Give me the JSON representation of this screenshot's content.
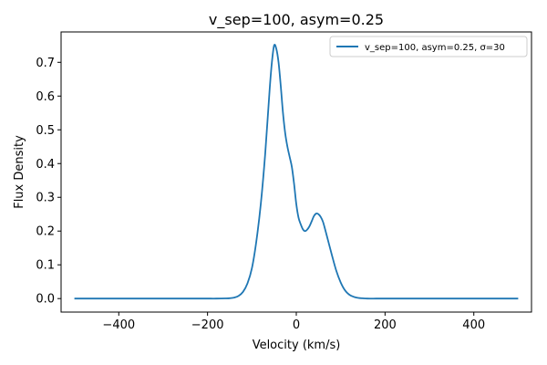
{
  "chart_data": {
    "type": "line",
    "title": "v_sep=100, asym=0.25",
    "xlabel": "Velocity (km/s)",
    "ylabel": "Flux Density",
    "xlim": [
      -530,
      530
    ],
    "ylim": [
      -0.04,
      0.79
    ],
    "xticks": [
      -400,
      -200,
      0,
      200,
      400
    ],
    "xtick_labels": [
      "−400",
      "−200",
      "0",
      "200",
      "400"
    ],
    "yticks": [
      0.0,
      0.1,
      0.2,
      0.3,
      0.4,
      0.5,
      0.6,
      0.7
    ],
    "ytick_labels": [
      "0.0",
      "0.1",
      "0.2",
      "0.3",
      "0.4",
      "0.5",
      "0.6",
      "0.7"
    ],
    "grid": false,
    "legend_position": "top-right",
    "series": [
      {
        "name": "v_sep=100, asym=0.25,  σ=30",
        "color": "#1f77b4",
        "x": [
          -500,
          -400,
          -300,
          -200,
          -180,
          -160,
          -150,
          -140,
          -130,
          -120,
          -110,
          -100,
          -90,
          -80,
          -70,
          -60,
          -55,
          -50,
          -45,
          -40,
          -35,
          -30,
          -25,
          -20,
          -15,
          -10,
          -5,
          0,
          5,
          10,
          15,
          20,
          25,
          30,
          35,
          40,
          45,
          50,
          55,
          60,
          65,
          70,
          80,
          90,
          100,
          110,
          120,
          130,
          140,
          150,
          160,
          180,
          200,
          300,
          400,
          500
        ],
        "y": [
          0.0,
          0.0,
          0.0,
          0.0,
          0.0,
          0.0005,
          0.001,
          0.003,
          0.008,
          0.02,
          0.045,
          0.09,
          0.17,
          0.28,
          0.43,
          0.62,
          0.7,
          0.75,
          0.74,
          0.7,
          0.63,
          0.55,
          0.49,
          0.45,
          0.42,
          0.39,
          0.34,
          0.28,
          0.24,
          0.22,
          0.205,
          0.2,
          0.205,
          0.215,
          0.23,
          0.245,
          0.252,
          0.25,
          0.242,
          0.228,
          0.205,
          0.18,
          0.13,
          0.083,
          0.048,
          0.024,
          0.011,
          0.005,
          0.002,
          0.0008,
          0.0,
          0.0,
          0.0,
          0.0,
          0.0,
          0.0
        ]
      }
    ]
  }
}
